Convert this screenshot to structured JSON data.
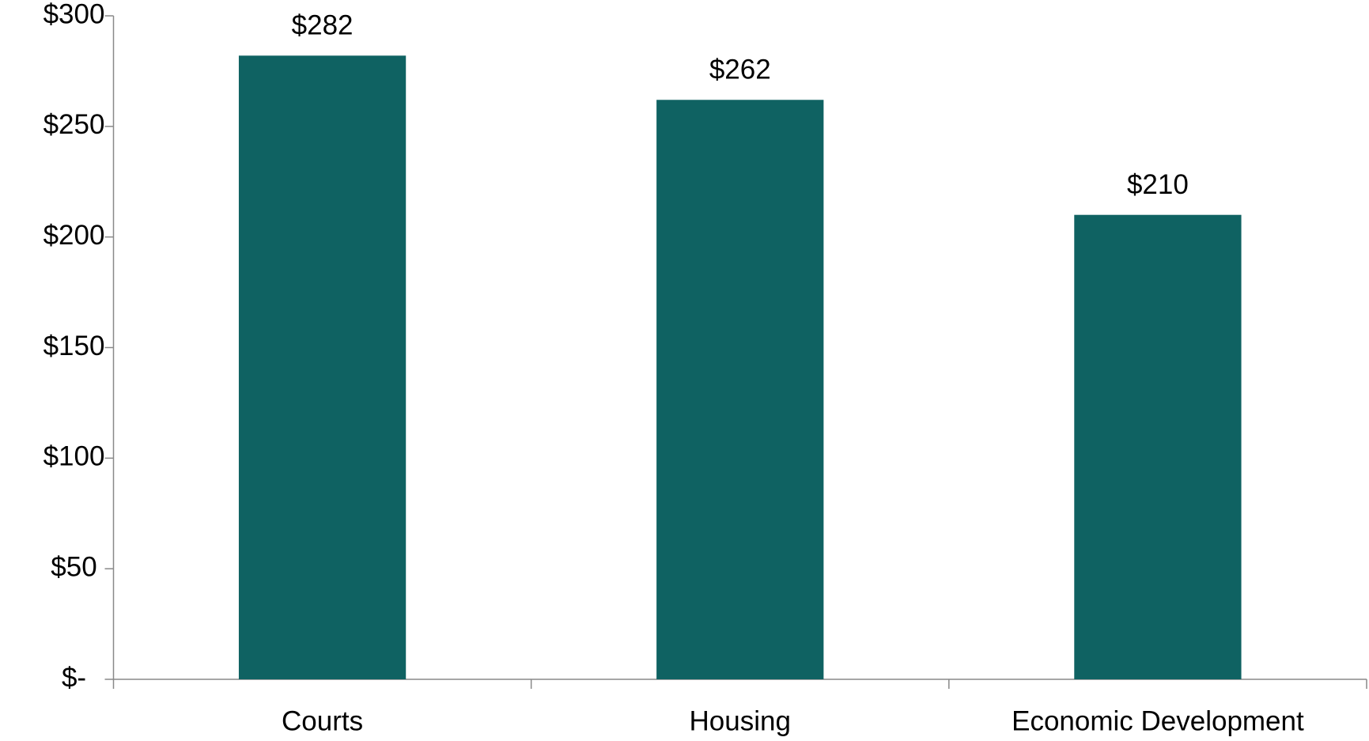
{
  "chart_data": {
    "type": "bar",
    "categories": [
      "Courts",
      "Housing",
      "Economic Development"
    ],
    "values": [
      282,
      262,
      210
    ],
    "value_labels": [
      "$282",
      "$262",
      "$210"
    ],
    "color": "#0f6262",
    "ylim": [
      0,
      300
    ],
    "yticks": [
      {
        "value": 0,
        "label": "$-"
      },
      {
        "value": 50,
        "label": "$50"
      },
      {
        "value": 100,
        "label": "$100"
      },
      {
        "value": 150,
        "label": "$150"
      },
      {
        "value": 200,
        "label": "$200"
      },
      {
        "value": 250,
        "label": "$250"
      },
      {
        "value": 300,
        "label": "$300"
      }
    ],
    "grid": false
  }
}
